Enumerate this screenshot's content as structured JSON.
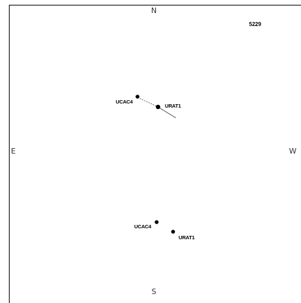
{
  "directions": {
    "north": "N",
    "south": "S",
    "east": "E",
    "west": "W"
  },
  "plate_id": "5229",
  "groups": [
    {
      "stars": [
        {
          "catalog": "UCAC4"
        },
        {
          "catalog": "URAT1"
        }
      ],
      "has_motion_vector": true
    },
    {
      "stars": [
        {
          "catalog": "UCAC4"
        },
        {
          "catalog": "URAT1"
        }
      ],
      "has_motion_vector": false
    }
  ],
  "colors": {
    "frame": "#000000",
    "star": "#000000",
    "vector": "#444444",
    "background": "#ffffff"
  }
}
